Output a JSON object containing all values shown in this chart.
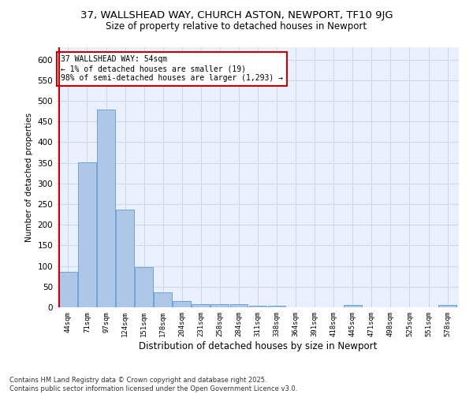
{
  "title1": "37, WALLSHEAD WAY, CHURCH ASTON, NEWPORT, TF10 9JG",
  "title2": "Size of property relative to detached houses in Newport",
  "xlabel": "Distribution of detached houses by size in Newport",
  "ylabel": "Number of detached properties",
  "annotation_lines": [
    "37 WALLSHEAD WAY: 54sqm",
    "← 1% of detached houses are smaller (19)",
    "98% of semi-detached houses are larger (1,293) →"
  ],
  "categories": [
    "44sqm",
    "71sqm",
    "97sqm",
    "124sqm",
    "151sqm",
    "178sqm",
    "204sqm",
    "231sqm",
    "258sqm",
    "284sqm",
    "311sqm",
    "338sqm",
    "364sqm",
    "391sqm",
    "418sqm",
    "445sqm",
    "471sqm",
    "498sqm",
    "525sqm",
    "551sqm",
    "578sqm"
  ],
  "values": [
    85,
    352,
    480,
    237,
    97,
    37,
    16,
    8,
    8,
    8,
    4,
    4,
    0,
    0,
    0,
    5,
    0,
    0,
    0,
    0,
    5
  ],
  "bar_color": "#aec6e8",
  "bar_edge_color": "#5b9bd5",
  "vline_color": "#cc0000",
  "box_color": "#cc0000",
  "ylim": [
    0,
    630
  ],
  "yticks": [
    0,
    50,
    100,
    150,
    200,
    250,
    300,
    350,
    400,
    450,
    500,
    550,
    600
  ],
  "grid_color": "#cdd5e8",
  "background_color": "#eaf0fb",
  "footer": "Contains HM Land Registry data © Crown copyright and database right 2025.\nContains public sector information licensed under the Open Government Licence v3.0."
}
